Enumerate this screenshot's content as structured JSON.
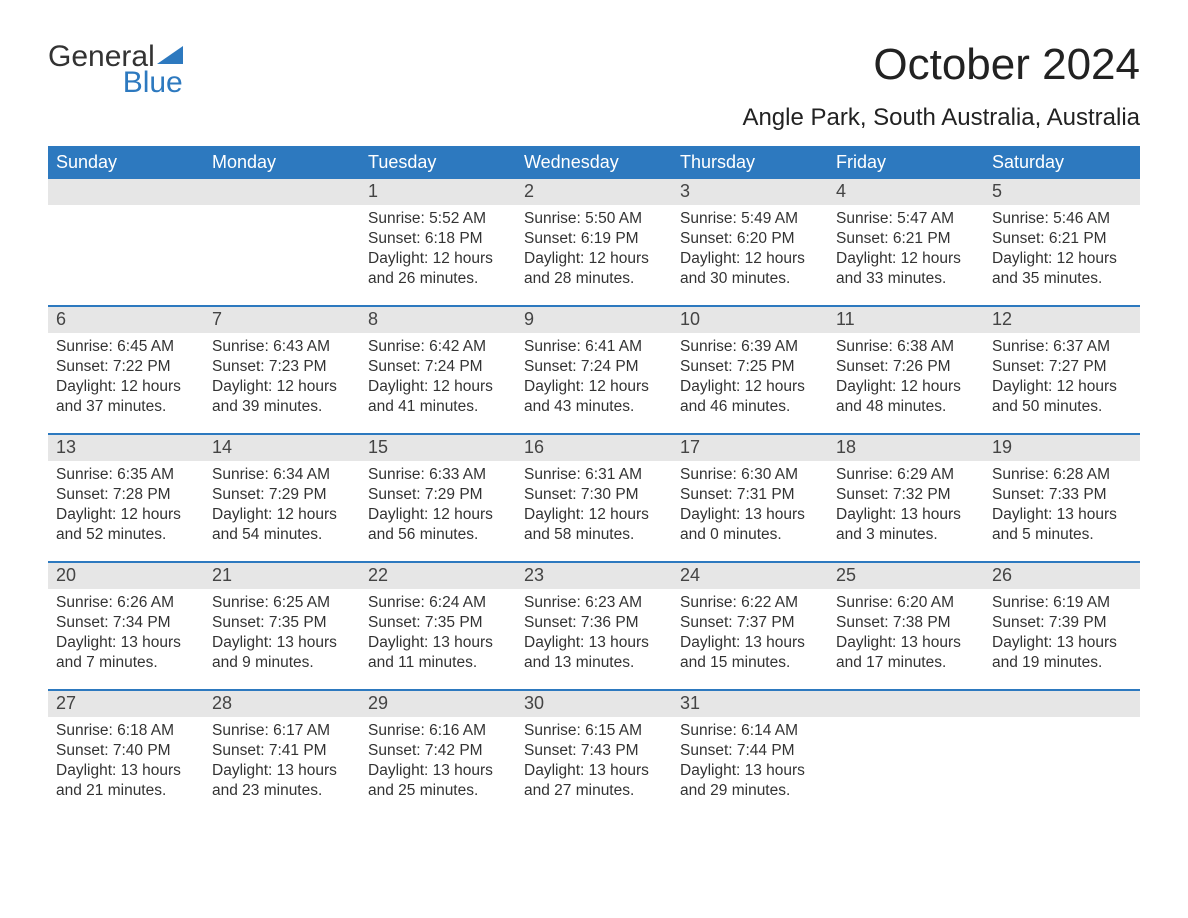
{
  "logo": {
    "text1": "General",
    "text2": "Blue"
  },
  "title": "October 2024",
  "location": "Angle Park, South Australia, Australia",
  "colors": {
    "header_bg": "#2d79bf",
    "header_text": "#ffffff",
    "daynum_bg": "#e6e6e6",
    "body_text": "#333333",
    "page_bg": "#ffffff",
    "rule": "#2d79bf"
  },
  "fonts": {
    "title_size": 44,
    "location_size": 24,
    "header_size": 18,
    "daynum_size": 18,
    "body_size": 15.5
  },
  "day_headers": [
    "Sunday",
    "Monday",
    "Tuesday",
    "Wednesday",
    "Thursday",
    "Friday",
    "Saturday"
  ],
  "weeks": [
    [
      {
        "n": "",
        "sunrise": "",
        "sunset": "",
        "daylight": ""
      },
      {
        "n": "",
        "sunrise": "",
        "sunset": "",
        "daylight": ""
      },
      {
        "n": "1",
        "sunrise": "Sunrise: 5:52 AM",
        "sunset": "Sunset: 6:18 PM",
        "daylight": "Daylight: 12 hours and 26 minutes."
      },
      {
        "n": "2",
        "sunrise": "Sunrise: 5:50 AM",
        "sunset": "Sunset: 6:19 PM",
        "daylight": "Daylight: 12 hours and 28 minutes."
      },
      {
        "n": "3",
        "sunrise": "Sunrise: 5:49 AM",
        "sunset": "Sunset: 6:20 PM",
        "daylight": "Daylight: 12 hours and 30 minutes."
      },
      {
        "n": "4",
        "sunrise": "Sunrise: 5:47 AM",
        "sunset": "Sunset: 6:21 PM",
        "daylight": "Daylight: 12 hours and 33 minutes."
      },
      {
        "n": "5",
        "sunrise": "Sunrise: 5:46 AM",
        "sunset": "Sunset: 6:21 PM",
        "daylight": "Daylight: 12 hours and 35 minutes."
      }
    ],
    [
      {
        "n": "6",
        "sunrise": "Sunrise: 6:45 AM",
        "sunset": "Sunset: 7:22 PM",
        "daylight": "Daylight: 12 hours and 37 minutes."
      },
      {
        "n": "7",
        "sunrise": "Sunrise: 6:43 AM",
        "sunset": "Sunset: 7:23 PM",
        "daylight": "Daylight: 12 hours and 39 minutes."
      },
      {
        "n": "8",
        "sunrise": "Sunrise: 6:42 AM",
        "sunset": "Sunset: 7:24 PM",
        "daylight": "Daylight: 12 hours and 41 minutes."
      },
      {
        "n": "9",
        "sunrise": "Sunrise: 6:41 AM",
        "sunset": "Sunset: 7:24 PM",
        "daylight": "Daylight: 12 hours and 43 minutes."
      },
      {
        "n": "10",
        "sunrise": "Sunrise: 6:39 AM",
        "sunset": "Sunset: 7:25 PM",
        "daylight": "Daylight: 12 hours and 46 minutes."
      },
      {
        "n": "11",
        "sunrise": "Sunrise: 6:38 AM",
        "sunset": "Sunset: 7:26 PM",
        "daylight": "Daylight: 12 hours and 48 minutes."
      },
      {
        "n": "12",
        "sunrise": "Sunrise: 6:37 AM",
        "sunset": "Sunset: 7:27 PM",
        "daylight": "Daylight: 12 hours and 50 minutes."
      }
    ],
    [
      {
        "n": "13",
        "sunrise": "Sunrise: 6:35 AM",
        "sunset": "Sunset: 7:28 PM",
        "daylight": "Daylight: 12 hours and 52 minutes."
      },
      {
        "n": "14",
        "sunrise": "Sunrise: 6:34 AM",
        "sunset": "Sunset: 7:29 PM",
        "daylight": "Daylight: 12 hours and 54 minutes."
      },
      {
        "n": "15",
        "sunrise": "Sunrise: 6:33 AM",
        "sunset": "Sunset: 7:29 PM",
        "daylight": "Daylight: 12 hours and 56 minutes."
      },
      {
        "n": "16",
        "sunrise": "Sunrise: 6:31 AM",
        "sunset": "Sunset: 7:30 PM",
        "daylight": "Daylight: 12 hours and 58 minutes."
      },
      {
        "n": "17",
        "sunrise": "Sunrise: 6:30 AM",
        "sunset": "Sunset: 7:31 PM",
        "daylight": "Daylight: 13 hours and 0 minutes."
      },
      {
        "n": "18",
        "sunrise": "Sunrise: 6:29 AM",
        "sunset": "Sunset: 7:32 PM",
        "daylight": "Daylight: 13 hours and 3 minutes."
      },
      {
        "n": "19",
        "sunrise": "Sunrise: 6:28 AM",
        "sunset": "Sunset: 7:33 PM",
        "daylight": "Daylight: 13 hours and 5 minutes."
      }
    ],
    [
      {
        "n": "20",
        "sunrise": "Sunrise: 6:26 AM",
        "sunset": "Sunset: 7:34 PM",
        "daylight": "Daylight: 13 hours and 7 minutes."
      },
      {
        "n": "21",
        "sunrise": "Sunrise: 6:25 AM",
        "sunset": "Sunset: 7:35 PM",
        "daylight": "Daylight: 13 hours and 9 minutes."
      },
      {
        "n": "22",
        "sunrise": "Sunrise: 6:24 AM",
        "sunset": "Sunset: 7:35 PM",
        "daylight": "Daylight: 13 hours and 11 minutes."
      },
      {
        "n": "23",
        "sunrise": "Sunrise: 6:23 AM",
        "sunset": "Sunset: 7:36 PM",
        "daylight": "Daylight: 13 hours and 13 minutes."
      },
      {
        "n": "24",
        "sunrise": "Sunrise: 6:22 AM",
        "sunset": "Sunset: 7:37 PM",
        "daylight": "Daylight: 13 hours and 15 minutes."
      },
      {
        "n": "25",
        "sunrise": "Sunrise: 6:20 AM",
        "sunset": "Sunset: 7:38 PM",
        "daylight": "Daylight: 13 hours and 17 minutes."
      },
      {
        "n": "26",
        "sunrise": "Sunrise: 6:19 AM",
        "sunset": "Sunset: 7:39 PM",
        "daylight": "Daylight: 13 hours and 19 minutes."
      }
    ],
    [
      {
        "n": "27",
        "sunrise": "Sunrise: 6:18 AM",
        "sunset": "Sunset: 7:40 PM",
        "daylight": "Daylight: 13 hours and 21 minutes."
      },
      {
        "n": "28",
        "sunrise": "Sunrise: 6:17 AM",
        "sunset": "Sunset: 7:41 PM",
        "daylight": "Daylight: 13 hours and 23 minutes."
      },
      {
        "n": "29",
        "sunrise": "Sunrise: 6:16 AM",
        "sunset": "Sunset: 7:42 PM",
        "daylight": "Daylight: 13 hours and 25 minutes."
      },
      {
        "n": "30",
        "sunrise": "Sunrise: 6:15 AM",
        "sunset": "Sunset: 7:43 PM",
        "daylight": "Daylight: 13 hours and 27 minutes."
      },
      {
        "n": "31",
        "sunrise": "Sunrise: 6:14 AM",
        "sunset": "Sunset: 7:44 PM",
        "daylight": "Daylight: 13 hours and 29 minutes."
      },
      {
        "n": "",
        "sunrise": "",
        "sunset": "",
        "daylight": ""
      },
      {
        "n": "",
        "sunrise": "",
        "sunset": "",
        "daylight": ""
      }
    ]
  ]
}
